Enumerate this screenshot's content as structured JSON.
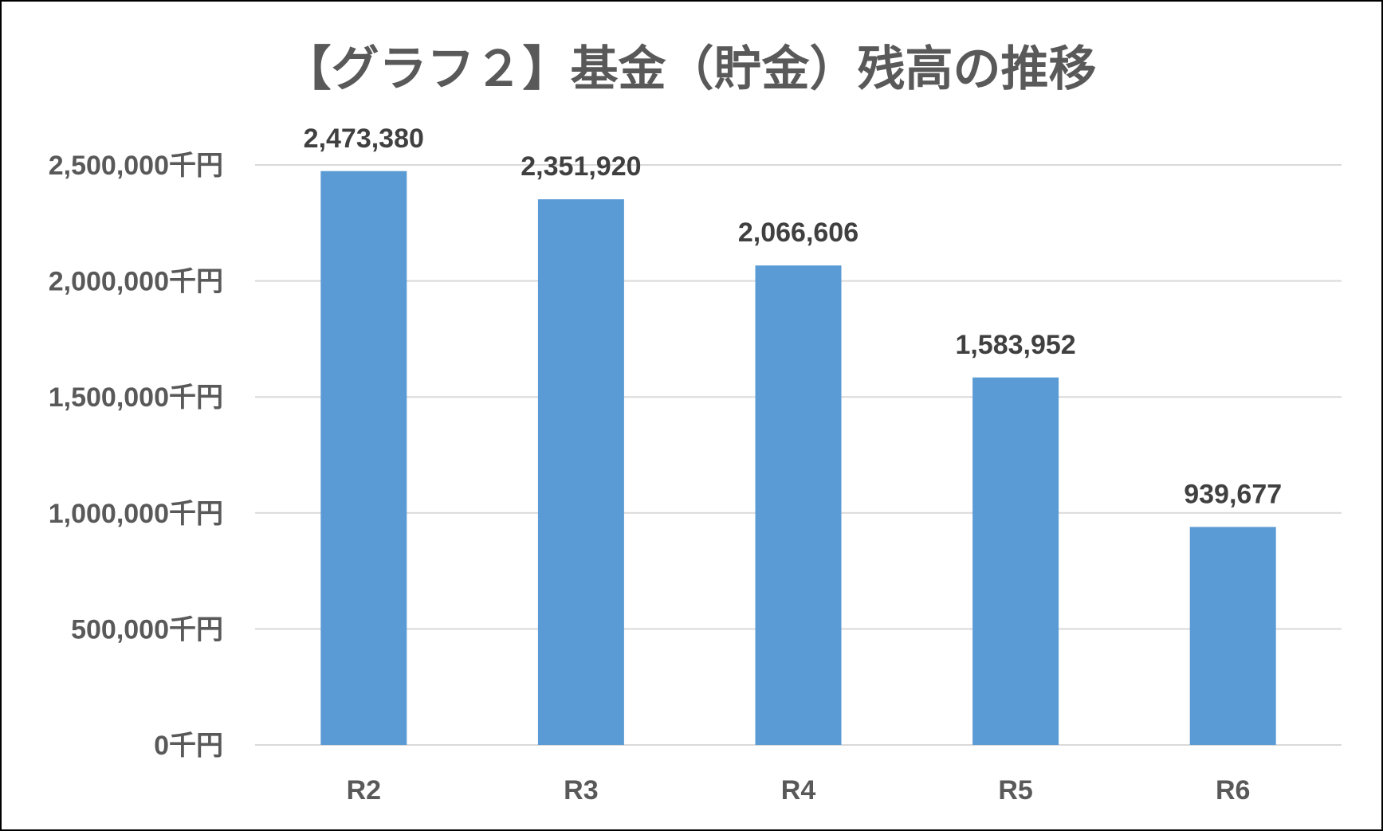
{
  "chart_data": {
    "type": "bar",
    "title": "【グラフ２】基金（貯金）残高の推移",
    "categories": [
      "R2",
      "R3",
      "R4",
      "R5",
      "R6"
    ],
    "values": [
      2473380,
      2351920,
      2066606,
      1583952,
      939677
    ],
    "data_labels": [
      "2,473,380",
      "2,351,920",
      "2,066,606",
      "1,583,952",
      "939,677"
    ],
    "y_ticks": [
      {
        "value": 0,
        "label": "0千円"
      },
      {
        "value": 500000,
        "label": "500,000千円"
      },
      {
        "value": 1000000,
        "label": "1,000,000千円"
      },
      {
        "value": 1500000,
        "label": "1,500,000千円"
      },
      {
        "value": 2000000,
        "label": "2,000,000千円"
      },
      {
        "value": 2500000,
        "label": "2,500,000千円"
      }
    ],
    "ylim": [
      0,
      2500000
    ],
    "grid": true,
    "legend": "none",
    "colors": {
      "bar": "#5B9BD5",
      "grid": "#D9D9D9",
      "title": "#595959",
      "tick": "#595959",
      "label": "#404040"
    }
  }
}
